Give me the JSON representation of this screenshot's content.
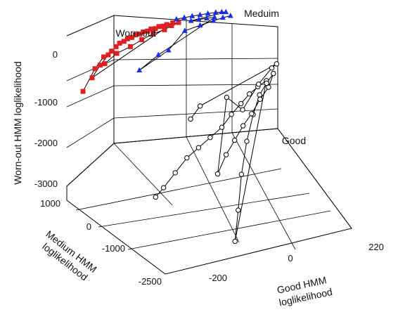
{
  "chart_data": {
    "type": "scatter",
    "projection": "3d",
    "axes": {
      "x": {
        "label": "Good HMM loglikelihood",
        "ticks": [
          -200,
          0,
          220
        ],
        "range": [
          -300,
          220
        ]
      },
      "y": {
        "label": "Medium HMM loglikelihood",
        "ticks": [
          1000,
          0,
          -1000,
          -2500
        ],
        "range": [
          -2500,
          1000
        ]
      },
      "z": {
        "label": "Worn-out HMM loglikelihood",
        "ticks": [
          0,
          -1000,
          -2000,
          -3000
        ],
        "range": [
          -3000,
          400
        ]
      }
    },
    "grid": true,
    "annotations": [
      "Worn-out",
      "Meduim",
      "Good"
    ],
    "series": [
      {
        "marker": "square",
        "color": "#e02020",
        "points": [
          [
            -300,
            800,
            -900
          ],
          [
            -270,
            760,
            -450
          ],
          [
            -250,
            700,
            -200
          ],
          [
            -230,
            680,
            -100
          ],
          [
            -210,
            650,
            50
          ],
          [
            -190,
            630,
            120
          ],
          [
            -170,
            610,
            180
          ],
          [
            -150,
            590,
            220
          ],
          [
            -130,
            570,
            260
          ],
          [
            -110,
            550,
            290
          ],
          [
            -90,
            530,
            310
          ],
          [
            -75,
            510,
            330
          ],
          [
            -280,
            720,
            -600
          ],
          [
            -260,
            690,
            -350
          ],
          [
            -240,
            660,
            -150
          ],
          [
            -220,
            640,
            0
          ],
          [
            -200,
            620,
            90
          ],
          [
            -180,
            600,
            150
          ],
          [
            -160,
            580,
            200
          ],
          [
            -140,
            560,
            240
          ],
          [
            -120,
            540,
            270
          ],
          [
            -100,
            520,
            300
          ],
          [
            -60,
            500,
            320
          ],
          [
            -80,
            480,
            300
          ],
          [
            -100,
            460,
            260
          ],
          [
            -130,
            470,
            220
          ],
          [
            -160,
            480,
            140
          ],
          [
            -190,
            490,
            40
          ],
          [
            -225,
            520,
            -60
          ],
          [
            -255,
            560,
            -250
          ]
        ]
      },
      {
        "marker": "triangle",
        "color": "#1a2ee6",
        "points": [
          [
            -60,
            600,
            330
          ],
          [
            -40,
            580,
            340
          ],
          [
            -20,
            560,
            350
          ],
          [
            0,
            540,
            355
          ],
          [
            20,
            520,
            360
          ],
          [
            40,
            500,
            360
          ],
          [
            55,
            480,
            355
          ],
          [
            65,
            460,
            350
          ],
          [
            -30,
            440,
            340
          ],
          [
            -10,
            420,
            345
          ],
          [
            10,
            400,
            350
          ],
          [
            30,
            380,
            345
          ],
          [
            -120,
            400,
            -200
          ],
          [
            -170,
            420,
            -450
          ],
          [
            -95,
            360,
            -120
          ],
          [
            -50,
            380,
            200
          ],
          [
            -10,
            360,
            260
          ],
          [
            25,
            350,
            300
          ],
          [
            50,
            340,
            330
          ],
          [
            70,
            330,
            340
          ]
        ]
      },
      {
        "marker": "circle",
        "color": "#000000",
        "points": [
          [
            -150,
            0,
            -2900
          ],
          [
            -140,
            -200,
            -2600
          ],
          [
            -120,
            -400,
            -2200
          ],
          [
            -100,
            -600,
            -1800
          ],
          [
            -80,
            -800,
            -1500
          ],
          [
            -60,
            -1000,
            -1200
          ],
          [
            -40,
            -1200,
            -900
          ],
          [
            -20,
            -1300,
            -600
          ],
          [
            0,
            -1400,
            -350
          ],
          [
            20,
            -1450,
            -150
          ],
          [
            40,
            -1500,
            0
          ],
          [
            60,
            -1550,
            120
          ],
          [
            -50,
            -2000,
            -2800
          ],
          [
            -30,
            -1800,
            -2300
          ],
          [
            -10,
            -1600,
            -1700
          ],
          [
            10,
            -1500,
            -1100
          ],
          [
            30,
            -1450,
            -600
          ],
          [
            50,
            -1400,
            -250
          ],
          [
            70,
            -1380,
            -50
          ],
          [
            90,
            -1350,
            100
          ],
          [
            80,
            -1300,
            -200
          ],
          [
            60,
            -1250,
            -450
          ],
          [
            40,
            -1200,
            -750
          ],
          [
            20,
            -1150,
            -1000
          ],
          [
            0,
            -1100,
            -1300
          ],
          [
            -20,
            -1050,
            -1600
          ],
          [
            -40,
            -1000,
            -2000
          ],
          [
            -10,
            -900,
            -500
          ],
          [
            30,
            -950,
            -800
          ],
          [
            70,
            -1000,
            -300
          ],
          [
            100,
            -1100,
            50
          ],
          [
            110,
            -1150,
            150
          ],
          [
            -70,
            -700,
            -700
          ],
          [
            -90,
            -600,
            -1000
          ]
        ]
      }
    ]
  }
}
